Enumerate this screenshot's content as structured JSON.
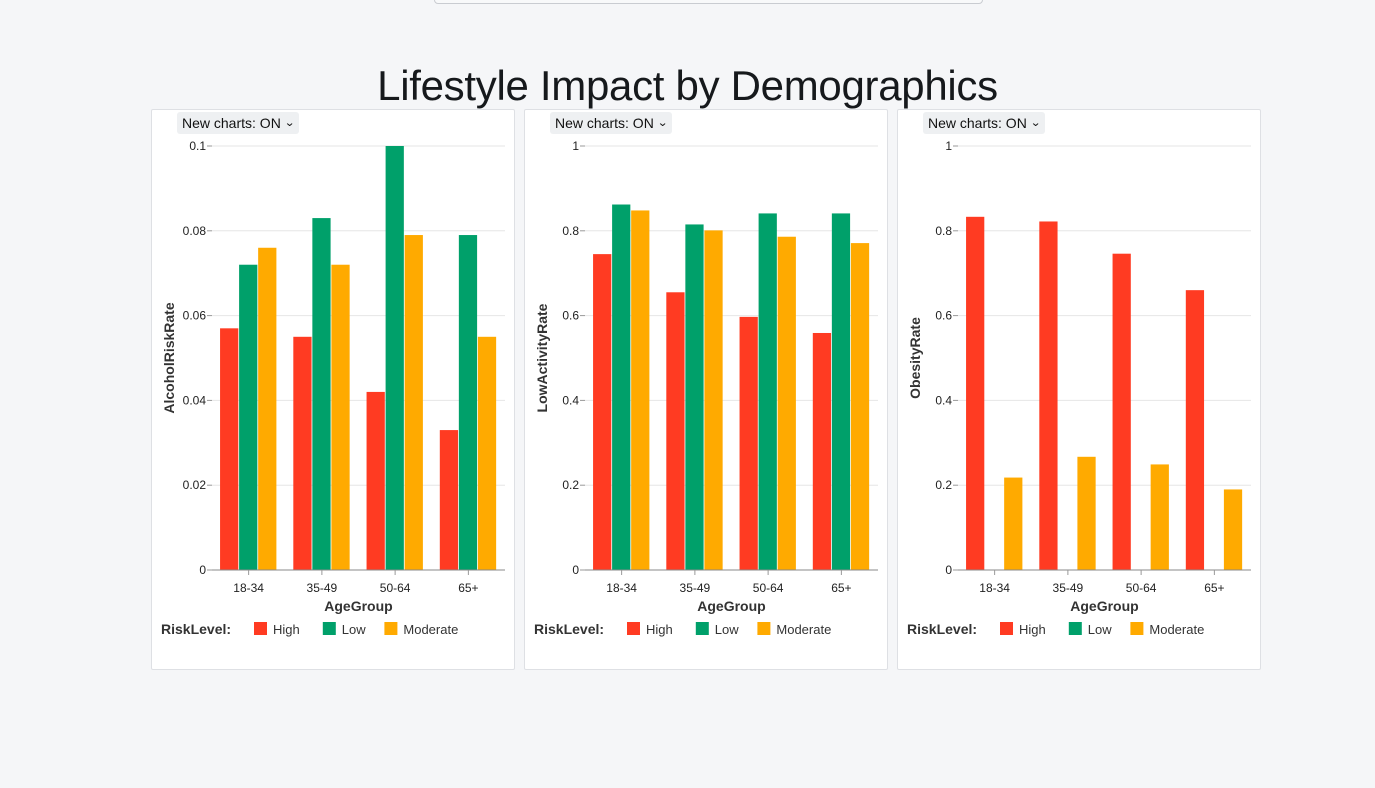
{
  "page": {
    "title": "Lifestyle Impact by Demographics"
  },
  "toggle_label": "New charts: ON",
  "colors": {
    "High": "#ff3b22",
    "Low": "#00a06a",
    "Moderate": "#ffaa00"
  },
  "chart_data": [
    {
      "type": "bar",
      "categories": [
        "18-34",
        "35-49",
        "50-64",
        "65+"
      ],
      "series": [
        {
          "name": "High",
          "values": [
            0.057,
            0.055,
            0.042,
            0.033
          ]
        },
        {
          "name": "Low",
          "values": [
            0.072,
            0.083,
            0.1,
            0.079
          ]
        },
        {
          "name": "Moderate",
          "values": [
            0.076,
            0.072,
            0.079,
            0.055
          ]
        }
      ],
      "xlabel": "AgeGroup",
      "ylabel": "AlcoholRiskRate",
      "ylim": [
        0,
        0.1
      ],
      "yticks": [
        "0",
        "0.02",
        "0.04",
        "0.06",
        "0.08",
        "0.1"
      ],
      "legend_title": "RiskLevel:",
      "legend_items": [
        "High",
        "Low",
        "Moderate"
      ],
      "legend_position": "bottom-left",
      "grid": true
    },
    {
      "type": "bar",
      "categories": [
        "18-34",
        "35-49",
        "50-64",
        "65+"
      ],
      "series": [
        {
          "name": "High",
          "values": [
            0.745,
            0.655,
            0.597,
            0.559
          ]
        },
        {
          "name": "Low",
          "values": [
            0.862,
            0.815,
            0.841,
            0.841
          ]
        },
        {
          "name": "Moderate",
          "values": [
            0.848,
            0.801,
            0.786,
            0.771
          ]
        }
      ],
      "xlabel": "AgeGroup",
      "ylabel": "LowActivityRate",
      "ylim": [
        0,
        1
      ],
      "yticks": [
        "0",
        "0.2",
        "0.4",
        "0.6",
        "0.8",
        "1"
      ],
      "legend_title": "RiskLevel:",
      "legend_items": [
        "High",
        "Low",
        "Moderate"
      ],
      "legend_position": "bottom-left",
      "grid": true
    },
    {
      "type": "bar",
      "categories": [
        "18-34",
        "35-49",
        "50-64",
        "65+"
      ],
      "series": [
        {
          "name": "High",
          "values": [
            0.833,
            0.822,
            0.746,
            0.66
          ]
        },
        {
          "name": "Low",
          "values": [
            null,
            null,
            null,
            null
          ]
        },
        {
          "name": "Moderate",
          "values": [
            0.218,
            0.267,
            0.249,
            0.19
          ]
        }
      ],
      "xlabel": "AgeGroup",
      "ylabel": "ObesityRate",
      "ylim": [
        0,
        1
      ],
      "yticks": [
        "0",
        "0.2",
        "0.4",
        "0.6",
        "0.8",
        "1"
      ],
      "legend_title": "RiskLevel:",
      "legend_items": [
        "High",
        "Low",
        "Moderate"
      ],
      "legend_position": "bottom-left",
      "grid": true
    }
  ]
}
